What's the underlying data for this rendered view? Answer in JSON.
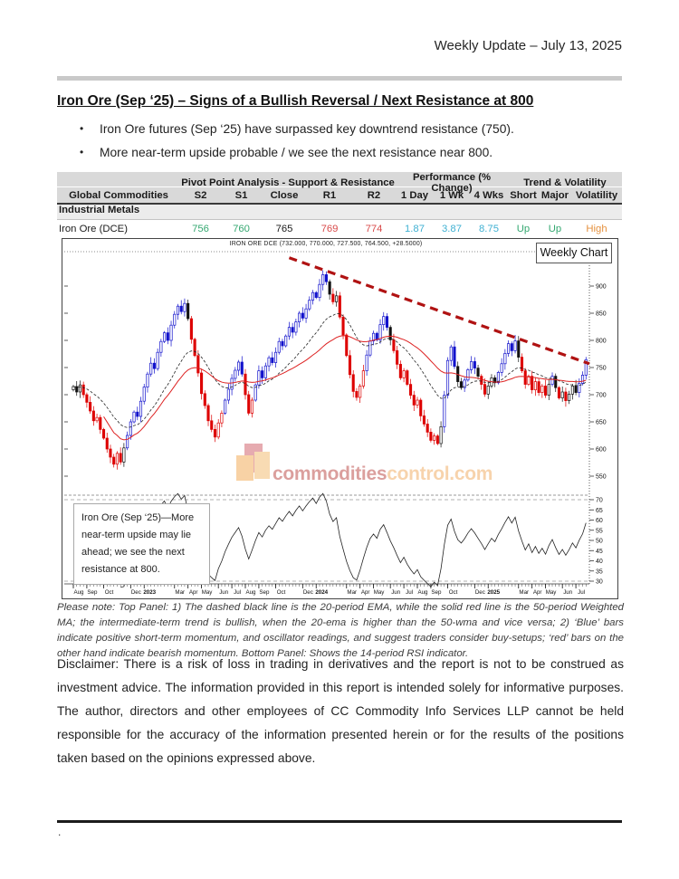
{
  "page": {
    "header_right": "Weekly Update – July 13, 2025",
    "footer_dot": "."
  },
  "article": {
    "title": "Iron Ore (Sep ‘25) – Signs of a Bullish Reversal / Next Resistance at 800",
    "bullets": [
      "Iron Ore futures (Sep ‘25) have surpassed key downtrend resistance (750).",
      "More near-term upside probable / we see the next resistance near 800."
    ]
  },
  "table": {
    "group_headers": [
      "Pivot Point Analysis - Support & Resistance",
      "Performance (% Change)",
      "Trend & Volatility"
    ],
    "columns": [
      "Global Commodities",
      "S2",
      "S1",
      "Close",
      "R1",
      "R2",
      "1 Day",
      "1 Wk",
      "4 Wks",
      "Short",
      "Major",
      "Volatility"
    ],
    "section": "Industrial Metals",
    "row": {
      "name": "Iron Ore (DCE)",
      "s2": "756",
      "s1": "760",
      "close": "765",
      "r1": "769",
      "r2": "774",
      "d1": "1.87",
      "w1": "3.87",
      "w4": "8.75",
      "short": "Up",
      "major": "Up",
      "volatility": "High"
    },
    "colors": {
      "support": "#35a871",
      "neutral": "#1a1a1a",
      "resistance": "#d94b4b",
      "performance": "#3fb0d2",
      "trend_up": "#35a871",
      "vol_high": "#e5913e"
    }
  },
  "chart_data": {
    "type": "candlestick",
    "timeframe": "weekly",
    "title": "IRON ORE DCE (732.000, 770.000, 727.500, 764.500, +28.5000)",
    "badge": "Weekly Chart",
    "annotation": "Iron Ore (Sep ‘25)—More near-term upside may lie ahead; we see the next resistance at 800.",
    "watermark": {
      "prefix": "commodities",
      "suffix": "control.com"
    },
    "last_bar": {
      "open": 732.0,
      "high": 770.0,
      "low": 727.5,
      "close": 764.5,
      "change": "+28.5000"
    },
    "y_ticks": [
      900,
      850,
      800,
      750,
      700,
      650,
      600,
      550
    ],
    "ylim": [
      550,
      950
    ],
    "rsi_ticks": [
      70,
      65,
      60,
      55,
      50,
      45,
      40,
      35,
      30
    ],
    "lower_panel": {
      "indicator": "14-period RSI",
      "range": [
        30,
        70
      ]
    },
    "overlays": [
      {
        "name": "20-period EMA",
        "style": "dashed",
        "color": "#222222"
      },
      {
        "name": "50-period Weighted MA",
        "style": "solid",
        "color": "#dd2222"
      }
    ],
    "trendline": {
      "from_week": 64,
      "from_value": 952,
      "to_week": 153,
      "to_value": 757,
      "style": "dashed",
      "color": "#b01212",
      "label": "downtrend resistance ~750"
    },
    "bar_colors": {
      "bullish": "#1111cc",
      "bearish": "#dd0000",
      "neutral": "#111111"
    },
    "x_ticks": [
      {
        "label": "Aug",
        "week": 0
      },
      {
        "label": "Sep",
        "week": 4
      },
      {
        "label": "Oct",
        "week": 9
      },
      {
        "label": "Dec",
        "week": 17
      },
      {
        "label": "2023",
        "week": 21
      },
      {
        "label": "Mar",
        "week": 30
      },
      {
        "label": "Apr",
        "week": 34
      },
      {
        "label": "May",
        "week": 38
      },
      {
        "label": "Jun",
        "week": 43
      },
      {
        "label": "Jul",
        "week": 47
      },
      {
        "label": "Aug",
        "week": 51
      },
      {
        "label": "Sep",
        "week": 55
      },
      {
        "label": "Oct",
        "week": 60
      },
      {
        "label": "Dec",
        "week": 68
      },
      {
        "label": "2024",
        "week": 72
      },
      {
        "label": "Mar",
        "week": 81
      },
      {
        "label": "Apr",
        "week": 85
      },
      {
        "label": "May",
        "week": 89
      },
      {
        "label": "Jun",
        "week": 94
      },
      {
        "label": "Jul",
        "week": 98
      },
      {
        "label": "Aug",
        "week": 102
      },
      {
        "label": "Sep",
        "week": 106
      },
      {
        "label": "Oct",
        "week": 111
      },
      {
        "label": "Dec",
        "week": 119
      },
      {
        "label": "2025",
        "week": 123
      },
      {
        "label": "Mar",
        "week": 132
      },
      {
        "label": "Apr",
        "week": 136
      },
      {
        "label": "May",
        "week": 140
      },
      {
        "label": "Jun",
        "week": 145
      },
      {
        "label": "Jul",
        "week": 149
      }
    ],
    "closes": [
      715,
      705,
      718,
      700,
      686,
      670,
      652,
      658,
      636,
      620,
      600,
      585,
      572,
      592,
      576,
      602,
      625,
      650,
      668,
      660,
      688,
      714,
      738,
      758,
      748,
      778,
      798,
      814,
      800,
      828,
      848,
      863,
      853,
      868,
      840,
      802,
      772,
      740,
      702,
      680,
      652,
      636,
      622,
      648,
      666,
      690,
      710,
      730,
      745,
      760,
      738,
      700,
      666,
      690,
      718,
      744,
      731,
      753,
      768,
      759,
      778,
      798,
      790,
      808,
      824,
      815,
      834,
      850,
      841,
      858,
      874,
      888,
      879,
      903,
      921,
      908,
      885,
      871,
      882,
      843,
      810,
      772,
      737,
      706,
      695,
      716,
      744,
      773,
      799,
      813,
      801,
      829,
      844,
      824,
      801,
      781,
      756,
      731,
      744,
      719,
      699,
      681,
      690,
      661,
      646,
      631,
      616,
      624,
      610,
      641,
      699,
      763,
      788,
      752,
      724,
      713,
      727,
      746,
      761,
      749,
      734,
      719,
      701,
      716,
      731,
      722,
      741,
      757,
      776,
      794,
      781,
      799,
      769,
      744,
      719,
      734,
      709,
      724,
      704,
      716,
      699,
      719,
      734,
      713,
      694,
      705,
      689,
      701,
      716,
      704,
      721,
      736,
      764.5
    ]
  },
  "note": "Please note: Top Panel: 1) The dashed black line is the 20-period EMA, while the solid red line is the 50-period Weighted MA; the intermediate-term trend is bullish, when the 20-ema is higher than the 50-wma and vice versa; 2) ‘Blue’ bars indicate positive short-term momentum, and oscillator readings, and suggest traders consider buy-setups; ‘red’ bars on the other hand indicate bearish momentum. Bottom Panel: Shows the 14-period RSI indicator.",
  "disclaimer": "Disclaimer: There is a risk of loss in trading in derivatives and the report is not to be construed as investment advice. The information provided in this report is intended solely for informative purposes. The author, directors and other employees of CC Commodity Info Services LLP cannot be held responsible for the accuracy of the information presented herein or for the results of the positions taken based on the opinions expressed above."
}
